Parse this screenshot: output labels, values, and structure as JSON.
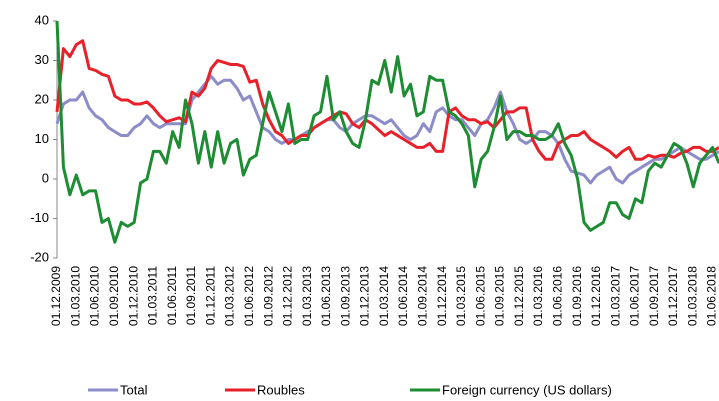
{
  "chart_data": {
    "type": "line",
    "categories": [
      "01.12.2009",
      null,
      null,
      "01.03.2010",
      null,
      null,
      "01.06.2010",
      null,
      null,
      "01.09.2010",
      null,
      null,
      "01.12.2010",
      null,
      null,
      "01.03.2011",
      null,
      null,
      "01.06.2011",
      null,
      null,
      "01.09.2011",
      null,
      null,
      "01.12.2011",
      null,
      null,
      "01.03.2012",
      null,
      null,
      "01.06.2012",
      null,
      null,
      "01.09.2012",
      null,
      null,
      "01.12.2012",
      null,
      null,
      "01.03.2013",
      null,
      null,
      "01.06.2013",
      null,
      null,
      "01.09.2013",
      null,
      null,
      "01.12.2013",
      null,
      null,
      "01.03.2014",
      null,
      null,
      "01.06.2014",
      null,
      null,
      "01.09.2014",
      null,
      null,
      "01.12.2014",
      null,
      null,
      "01.03.2015",
      null,
      null,
      "01.06.2015",
      null,
      null,
      "01.09.2015",
      null,
      null,
      "01.12.2015",
      null,
      null,
      "01.03.2016",
      null,
      null,
      "01.06.2016",
      null,
      null,
      "01.09.2016",
      null,
      null,
      "01.12.2016",
      null,
      null,
      "01.03.2017",
      null,
      null,
      "01.06.2017",
      null,
      null,
      "01.09.2017",
      null,
      null,
      "01.12.2017",
      null,
      null,
      "01.03.2018",
      null,
      null,
      "01.06.2018",
      null
    ],
    "series": [
      {
        "name": "Total",
        "color": "#8c8cc8",
        "values": [
          14,
          19,
          20,
          20,
          22,
          18,
          16,
          15,
          13,
          12,
          11,
          11,
          13,
          14,
          16,
          14,
          13,
          14,
          14,
          14,
          14,
          20,
          22,
          24,
          26,
          24,
          25,
          25,
          23,
          20,
          21,
          17,
          13,
          12,
          10,
          9,
          10,
          10,
          11,
          12,
          13,
          14,
          15,
          15,
          13,
          12,
          14,
          15,
          16,
          16,
          15,
          14,
          15,
          13,
          11,
          10,
          11,
          14,
          12,
          17,
          18,
          16,
          15,
          15,
          13,
          11,
          14,
          15,
          18,
          22,
          17,
          14,
          10,
          9,
          10,
          12,
          12,
          11,
          9,
          5,
          2,
          1.5,
          1,
          -1,
          1,
          2,
          3,
          0,
          -1,
          1,
          2,
          3,
          4,
          5,
          5,
          6,
          7,
          8,
          7,
          6,
          5,
          5,
          6,
          7
        ]
      },
      {
        "name": "Roubles",
        "color": "#e8202a",
        "values": [
          17,
          33,
          31,
          34,
          35,
          28,
          27.5,
          26.5,
          26,
          21,
          20,
          20,
          19,
          19,
          19.5,
          18,
          16,
          14.5,
          15,
          15.5,
          14.5,
          22,
          21,
          23,
          28,
          30,
          29.5,
          29,
          29,
          28.5,
          24.5,
          25,
          19,
          15,
          12,
          11,
          9,
          10,
          11,
          11,
          13,
          14,
          15,
          16,
          17,
          16.5,
          14,
          13,
          15,
          14,
          12.5,
          11,
          12,
          11,
          10,
          9,
          8,
          8,
          9,
          7,
          7,
          17,
          18,
          16,
          15,
          15,
          14,
          14.5,
          13,
          15,
          17,
          17,
          18,
          18,
          10,
          7,
          5,
          5,
          9,
          10,
          11,
          11,
          12,
          10,
          9,
          8,
          7,
          5.5,
          7,
          8,
          5,
          5,
          6,
          5.5,
          6,
          6,
          5.5,
          6.5,
          7,
          8,
          8,
          7,
          7,
          8
        ]
      },
      {
        "name": "Foreign currency (US dollars)",
        "color": "#1e8c32",
        "values": [
          40,
          3,
          -4,
          1,
          -4,
          -3,
          -3,
          -11,
          -10,
          -16,
          -11,
          -12,
          -11,
          -1,
          0,
          7,
          7,
          4,
          12,
          8,
          20,
          14,
          4,
          12,
          3,
          12,
          4,
          9,
          10,
          1,
          5,
          6,
          14,
          22,
          17,
          12,
          19,
          9,
          10,
          10,
          16,
          17,
          26,
          15,
          17,
          12,
          9,
          8,
          15,
          25,
          24,
          30,
          22,
          31,
          21,
          24,
          16,
          17,
          26,
          25,
          25,
          17,
          16,
          14,
          11,
          -2,
          5,
          7,
          13,
          21,
          10,
          12,
          12,
          11,
          11,
          10,
          10,
          11,
          14,
          9,
          6,
          0,
          -11,
          -13,
          -12,
          -11,
          -6,
          -6,
          -9,
          -10,
          -5,
          -6,
          2,
          4,
          3,
          6,
          9,
          8,
          4,
          -2,
          4,
          6,
          8,
          4
        ]
      }
    ],
    "ylim": [
      -20,
      40
    ],
    "yticks": [
      -20,
      -10,
      0,
      10,
      20,
      30,
      40
    ],
    "grid": false
  }
}
